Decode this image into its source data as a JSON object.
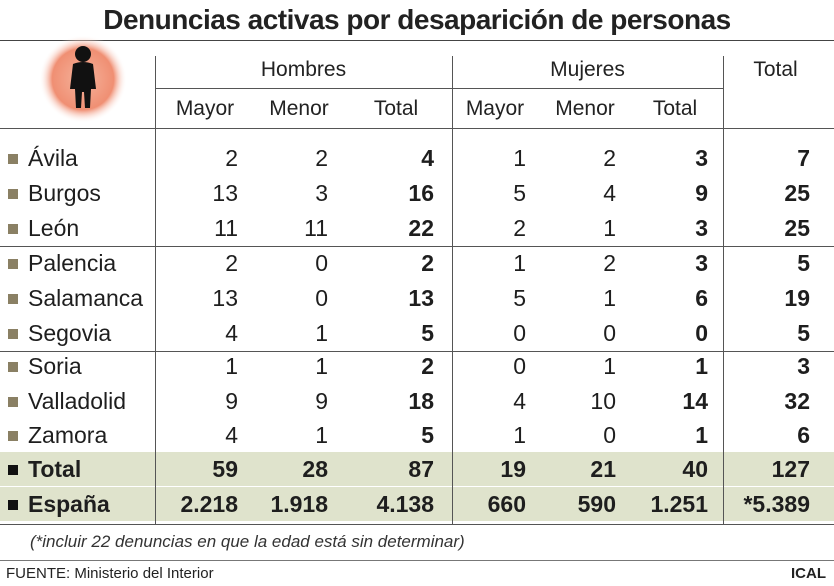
{
  "title": "Denuncias activas por desaparición de personas",
  "icon": "missing-person-silhouette",
  "colors": {
    "bullet": "#8a8064",
    "summary_bg": "#dfe3cc",
    "icon_glow": "#f08f73"
  },
  "header": {
    "groups": [
      "Hombres",
      "Mujeres",
      "Total"
    ],
    "sub": [
      "Mayor",
      "Menor",
      "Total",
      "Mayor",
      "Menor",
      "Total"
    ]
  },
  "rows": [
    {
      "name": "Ávila",
      "v": [
        "2",
        "2",
        "4",
        "1",
        "2",
        "3",
        "7"
      ]
    },
    {
      "name": "Burgos",
      "v": [
        "13",
        "3",
        "16",
        "5",
        "4",
        "9",
        "25"
      ]
    },
    {
      "name": "León",
      "v": [
        "11",
        "11",
        "22",
        "2",
        "1",
        "3",
        "25"
      ]
    },
    {
      "name": "Palencia",
      "v": [
        "2",
        "0",
        "2",
        "1",
        "2",
        "3",
        "5"
      ]
    },
    {
      "name": "Salamanca",
      "v": [
        "13",
        "0",
        "13",
        "5",
        "1",
        "6",
        "19"
      ]
    },
    {
      "name": "Segovia",
      "v": [
        "4",
        "1",
        "5",
        "0",
        "0",
        "0",
        "5"
      ]
    },
    {
      "name": "Soria",
      "v": [
        "1",
        "1",
        "2",
        "0",
        "1",
        "1",
        "3"
      ]
    },
    {
      "name": "Valladolid",
      "v": [
        "9",
        "9",
        "18",
        "4",
        "10",
        "14",
        "32"
      ]
    },
    {
      "name": "Zamora",
      "v": [
        "4",
        "1",
        "5",
        "1",
        "0",
        "1",
        "6"
      ]
    }
  ],
  "total_row": {
    "name": "Total",
    "v": [
      "59",
      "28",
      "87",
      "19",
      "21",
      "40",
      "127"
    ]
  },
  "espana_row": {
    "name": "España",
    "v": [
      "2.218",
      "1.918",
      "4.138",
      "660",
      "590",
      "1.251",
      "*5.389"
    ]
  },
  "footnote": "(*incluir 22 denuncias en que la edad está sin determinar)",
  "source_label": "FUENTE:",
  "source": "Ministerio del Interior",
  "brand": "ICAL"
}
